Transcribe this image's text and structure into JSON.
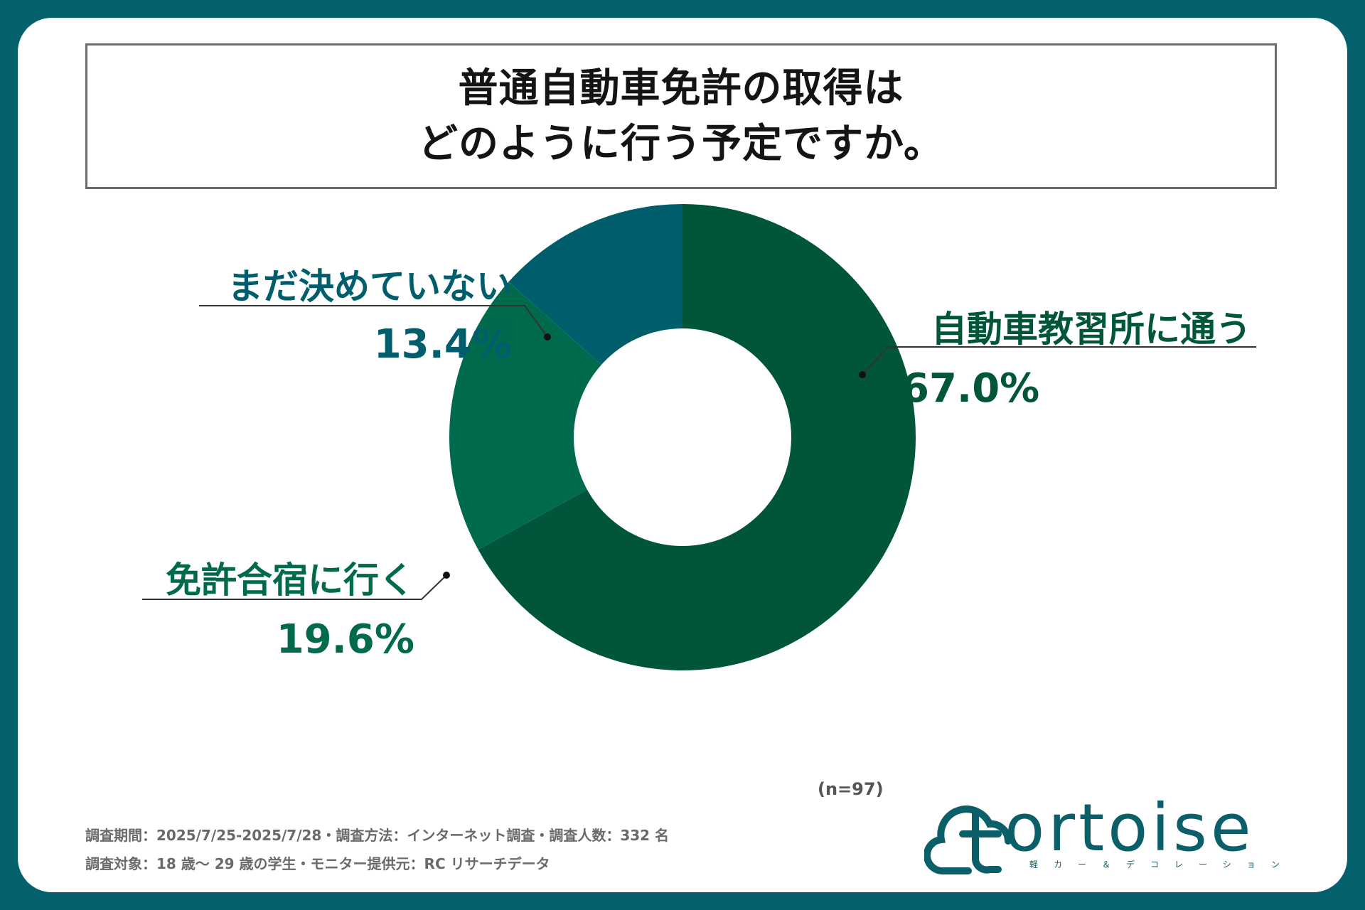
{
  "title": {
    "line1": "普通自動車免許の取得は",
    "line2": "どのように行う予定ですか。"
  },
  "chart_data": {
    "type": "pie",
    "donut": true,
    "slices": [
      {
        "label": "自動車教習所に通う",
        "value": 67.0,
        "display": "67.0%",
        "color": "#00553a"
      },
      {
        "label": "免許合宿に行く",
        "value": 19.6,
        "display": "19.6%",
        "color": "#006a4d"
      },
      {
        "label": "まだ決めていない",
        "value": 13.4,
        "display": "13.4%",
        "color": "#005e6c"
      }
    ],
    "n_note": "(n=97)"
  },
  "footer": {
    "line1": "調査期間：2025/7/25-2025/7/28・調査方法：インターネット調査・調査人数：332 名",
    "line2": "調査対象：18 歳〜 29 歳の学生・モニター提供元：RC リサーチデータ"
  },
  "logo": {
    "text": "ortoise",
    "tagline": "軽カー＆デコレーション",
    "color": "#0b5f69"
  }
}
